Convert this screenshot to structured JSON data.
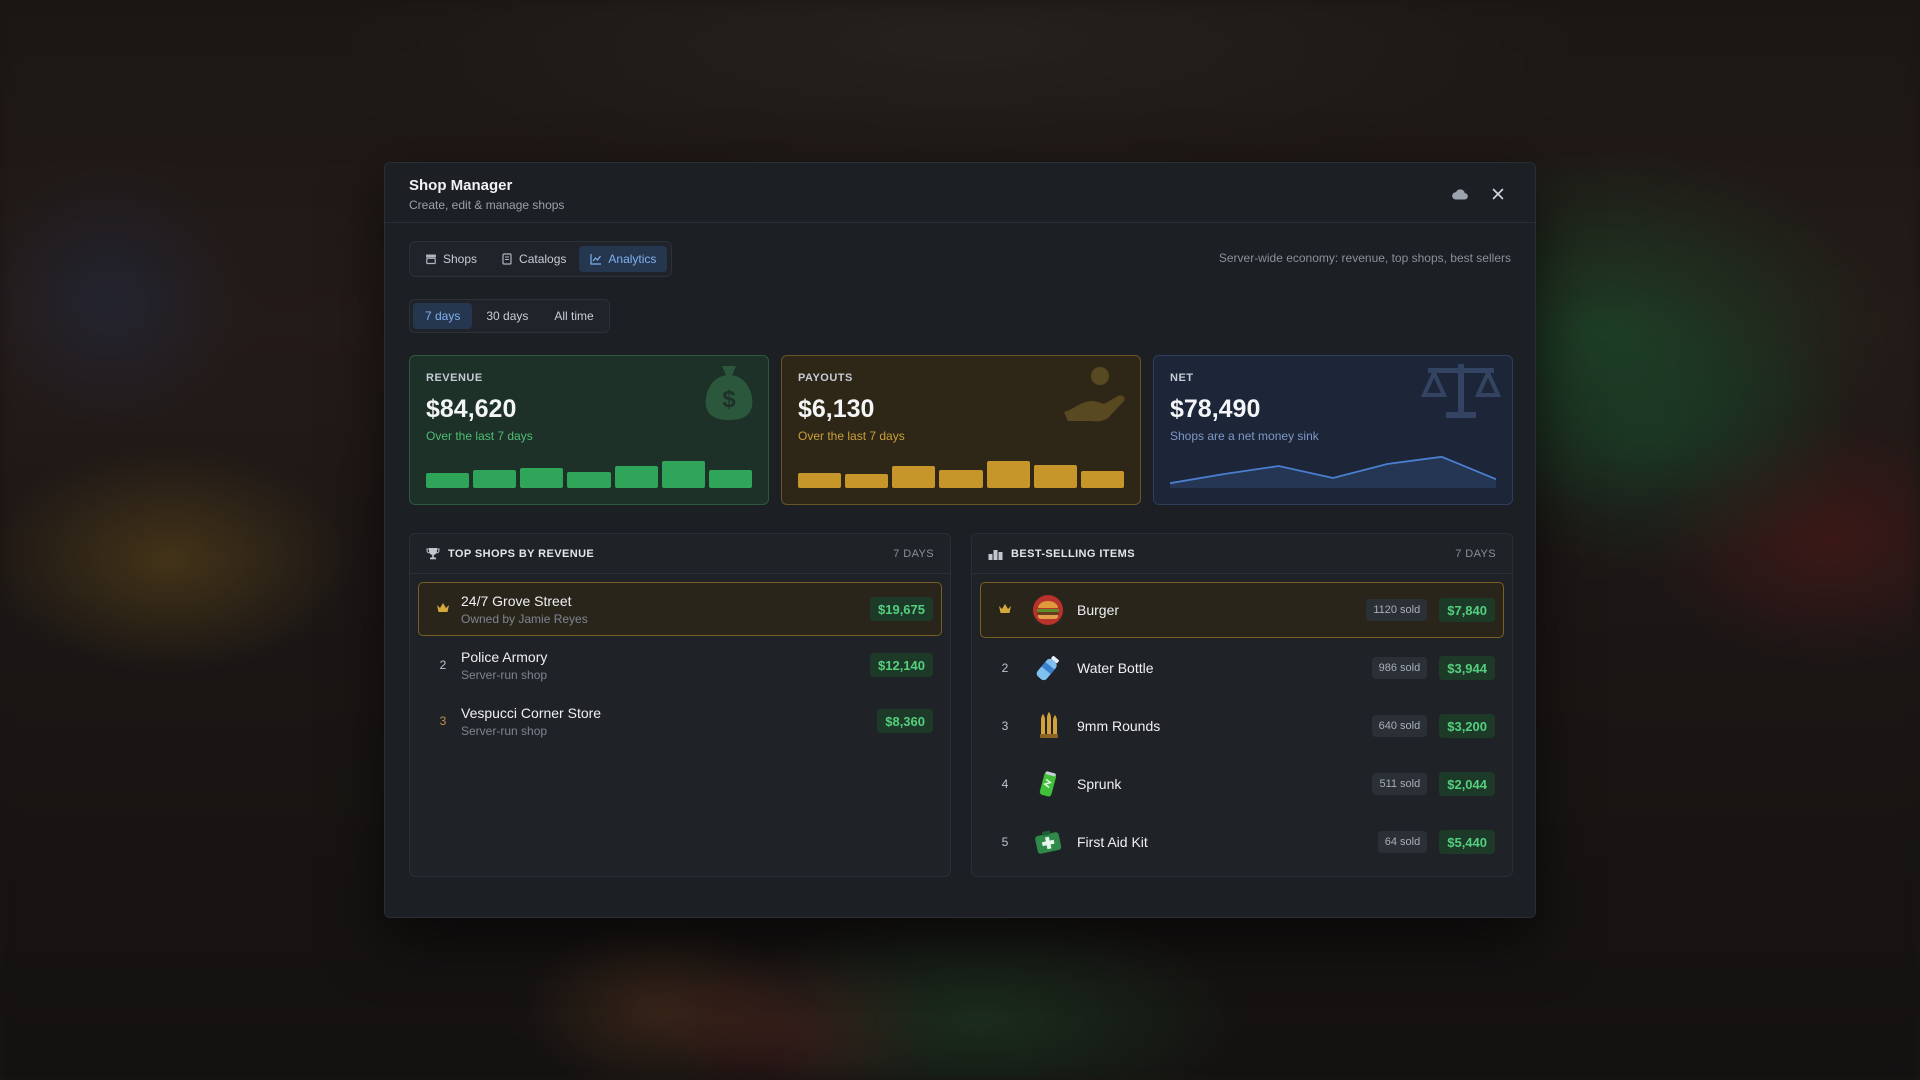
{
  "header": {
    "title": "Shop Manager",
    "subtitle": "Create, edit & manage shops"
  },
  "tabs": [
    {
      "label": "Shops",
      "icon": "store-icon",
      "active": false
    },
    {
      "label": "Catalogs",
      "icon": "book-icon",
      "active": false
    },
    {
      "label": "Analytics",
      "icon": "chart-line-icon",
      "active": true
    }
  ],
  "toolbar_hint": "Server-wide economy: revenue, top shops, best sellers",
  "ranges": [
    {
      "label": "7 days",
      "active": true
    },
    {
      "label": "30 days",
      "active": false
    },
    {
      "label": "All time",
      "active": false
    }
  ],
  "stats": {
    "revenue": {
      "label": "REVENUE",
      "value": "$84,620",
      "sub": "Over the last 7 days",
      "icon": "dollar-bag-icon",
      "trend": [
        0.45,
        0.52,
        0.6,
        0.48,
        0.65,
        0.78,
        0.52
      ]
    },
    "payouts": {
      "label": "PAYOUTS",
      "value": "$6,130",
      "sub": "Over the last 7 days",
      "icon": "hand-coin-icon",
      "trend": [
        0.45,
        0.4,
        0.65,
        0.53,
        0.78,
        0.68,
        0.5
      ]
    },
    "net": {
      "label": "NET",
      "value": "$78,490",
      "sub": "Shops are a net money sink",
      "icon": "scales-icon",
      "trend": [
        0.12,
        0.35,
        0.55,
        0.25,
        0.6,
        0.78,
        0.22
      ]
    }
  },
  "top_shops": {
    "title": "TOP SHOPS BY REVENUE",
    "period": "7 DAYS",
    "rows": [
      {
        "rank": "",
        "name": "24/7 Grove Street",
        "owner": "Owned by Jamie Reyes",
        "amount": "$19,675"
      },
      {
        "rank": "2",
        "name": "Police Armory",
        "owner": "Server-run shop",
        "amount": "$12,140"
      },
      {
        "rank": "3",
        "name": "Vespucci Corner Store",
        "owner": "Server-run shop",
        "amount": "$8,360"
      }
    ]
  },
  "best_sellers": {
    "title": "BEST-SELLING ITEMS",
    "period": "7 DAYS",
    "rows": [
      {
        "rank": "",
        "name": "Burger",
        "icon": "burger-icon",
        "sold": "1120 sold",
        "amount": "$7,840"
      },
      {
        "rank": "2",
        "name": "Water Bottle",
        "icon": "water-bottle-icon",
        "sold": "986 sold",
        "amount": "$3,944"
      },
      {
        "rank": "3",
        "name": "9mm Rounds",
        "icon": "ammo-icon",
        "sold": "640 sold",
        "amount": "$3,200"
      },
      {
        "rank": "4",
        "name": "Sprunk",
        "icon": "soda-can-icon",
        "sold": "511 sold",
        "amount": "$2,044"
      },
      {
        "rank": "5",
        "name": "First Aid Kit",
        "icon": "first-aid-kit-icon",
        "sold": "64 sold",
        "amount": "$5,440"
      }
    ]
  },
  "colors": {
    "accent": "#7fb1ef",
    "money": "#54cf7e",
    "gold": "#d4a83a",
    "revenue": "#2fa55a",
    "payouts": "#c6962a",
    "net_line": "#4a7fd0"
  }
}
